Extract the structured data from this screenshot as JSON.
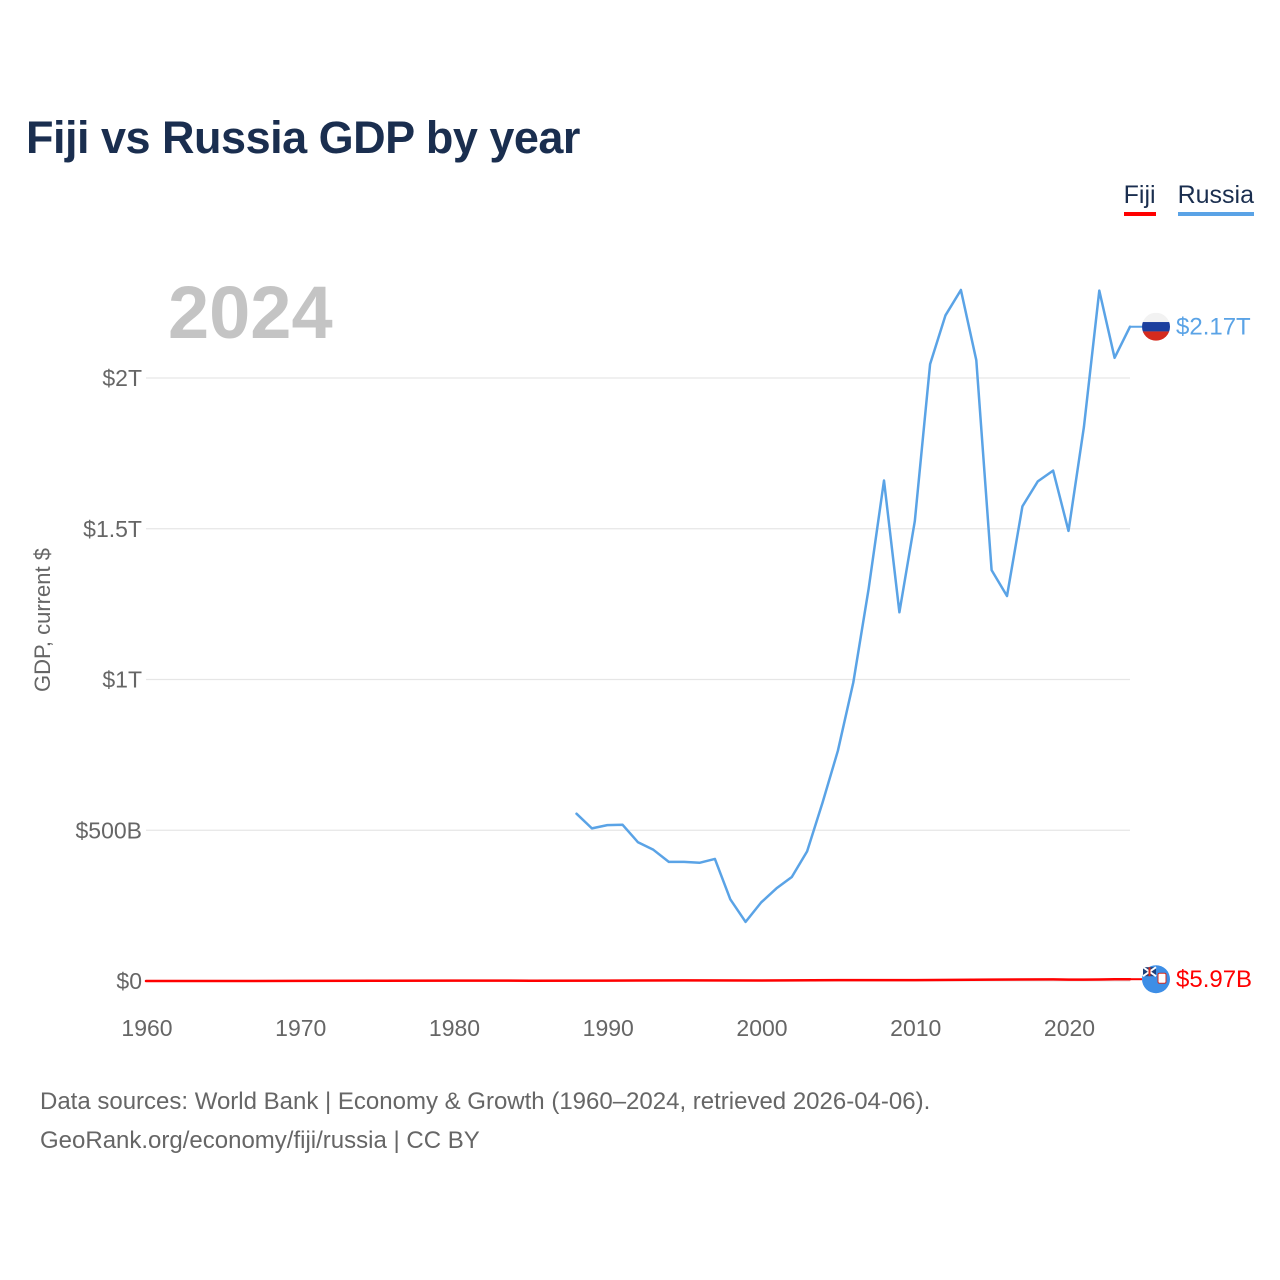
{
  "title": "Fiji vs Russia GDP by year",
  "legend": [
    {
      "label": "Fiji",
      "color": "#ff0000"
    },
    {
      "label": "Russia",
      "color": "#5aa3e6"
    }
  ],
  "year_label": "2024",
  "footer": {
    "line1": "Data sources: World Bank | Economy & Growth (1960–2024, retrieved 2026-04-06).",
    "line2": "GeoRank.org/economy/fiji/russia | CC BY"
  },
  "chart_data": {
    "type": "line",
    "title": "Fiji vs Russia GDP by year",
    "xlabel": "",
    "ylabel": "GDP, current $",
    "xlim": [
      1960,
      2024
    ],
    "ylim": [
      0,
      2000
    ],
    "y_unit": "billions of current US$",
    "x_ticks": [
      1960,
      1970,
      1980,
      1990,
      2000,
      2010,
      2020
    ],
    "y_ticks": [
      {
        "value": 0,
        "label": "$0"
      },
      {
        "value": 500,
        "label": "$500B"
      },
      {
        "value": 1000,
        "label": "$1T"
      },
      {
        "value": 1500,
        "label": "$1.5T"
      },
      {
        "value": 2000,
        "label": "$2T"
      }
    ],
    "grid": true,
    "series": [
      {
        "name": "Fiji",
        "color": "#ff0000",
        "end_label": "$5.97B",
        "x": [
          1960,
          1965,
          1970,
          1975,
          1980,
          1985,
          1990,
          1995,
          2000,
          2005,
          2010,
          2015,
          2019,
          2020,
          2021,
          2022,
          2023,
          2024
        ],
        "values": [
          0.1,
          0.15,
          0.2,
          0.7,
          1.2,
          1.1,
          1.4,
          2.0,
          1.7,
          3.0,
          3.1,
          4.7,
          5.4,
          4.5,
          4.6,
          5.0,
          5.5,
          5.97
        ]
      },
      {
        "name": "Russia",
        "color": "#5aa3e6",
        "end_label": "$2.17T",
        "x": [
          1988,
          1989,
          1990,
          1991,
          1992,
          1993,
          1994,
          1995,
          1996,
          1997,
          1998,
          1999,
          2000,
          2001,
          2002,
          2003,
          2004,
          2005,
          2006,
          2007,
          2008,
          2009,
          2010,
          2011,
          2012,
          2013,
          2014,
          2015,
          2016,
          2017,
          2018,
          2019,
          2020,
          2021,
          2022,
          2023,
          2024
        ],
        "values": [
          555,
          506,
          517,
          518,
          460,
          435,
          395,
          395,
          392,
          405,
          271,
          196,
          260,
          307,
          345,
          430,
          591,
          764,
          990,
          1300,
          1660,
          1223,
          1525,
          2046,
          2208,
          2292,
          2059,
          1363,
          1277,
          1574,
          1657,
          1693,
          1493,
          1837,
          2290,
          2067,
          2170
        ]
      }
    ]
  }
}
